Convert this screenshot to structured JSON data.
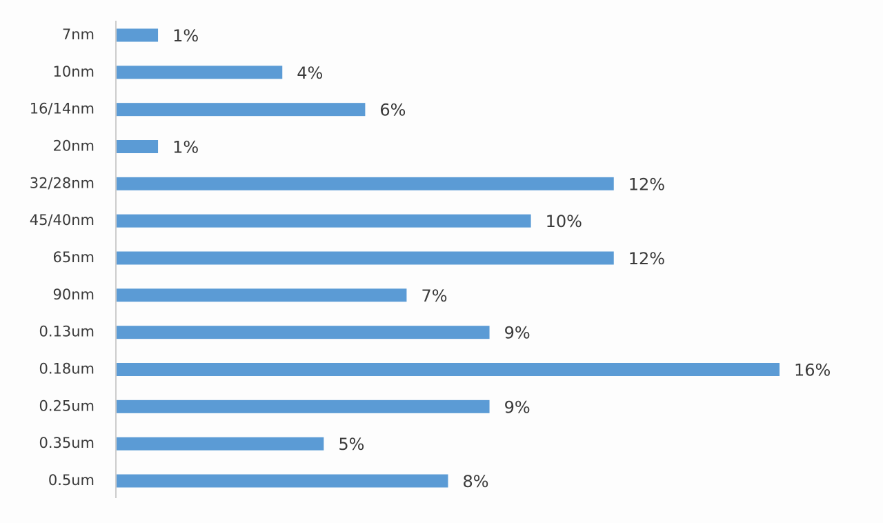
{
  "chart_data": {
    "type": "bar",
    "orientation": "horizontal",
    "categories": [
      "7nm",
      "10nm",
      "16/14nm",
      "20nm",
      "32/28nm",
      "45/40nm",
      "65nm",
      "90nm",
      "0.13um",
      "0.18um",
      "0.25um",
      "0.35um",
      "0.5um"
    ],
    "values": [
      1,
      4,
      6,
      1,
      12,
      10,
      12,
      7,
      9,
      16,
      9,
      5,
      8
    ],
    "value_labels": [
      "1%",
      "4%",
      "6%",
      "1%",
      "12%",
      "10%",
      "12%",
      "7%",
      "9%",
      "16%",
      "9%",
      "5%",
      "8%"
    ],
    "color": "#5b9bd5"
  }
}
